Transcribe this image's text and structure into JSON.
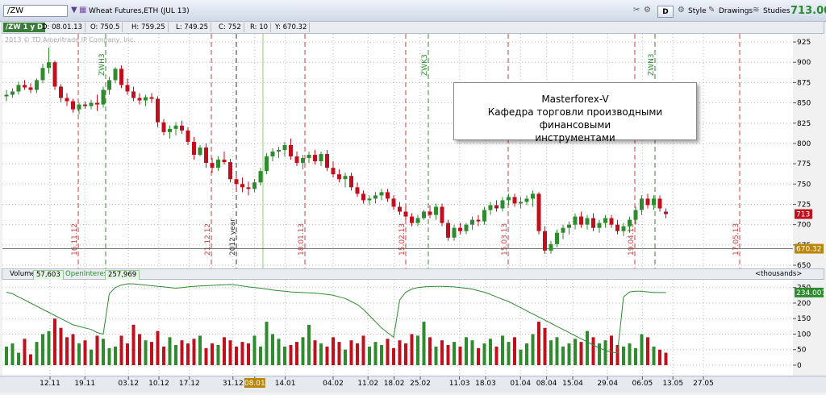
{
  "toolbar": {
    "symbol": "/ZW",
    "instrument": "Wheat Futures,ETH (JUL 13)",
    "d_label": "D",
    "style_label": "Style",
    "drawings_label": "Drawings",
    "studies_label": "Studies",
    "last_price": "713.00"
  },
  "statusbar": {
    "sym": "/ZW 1 y D",
    "date": "D: 08.01.13",
    "open": "O: 750.5",
    "high": "H: 759.25",
    "low": "L: 749.25",
    "close": "C: 752",
    "range": "R: 10",
    "y": "Y: 670.32"
  },
  "copyright": "2013 © TD Ameritrade IP Company, Inc.",
  "annotation": {
    "line1": "Masterforex-V",
    "line2": "Кафедра торговли производными финансовыми",
    "line3": "инструментами"
  },
  "volume_header": {
    "vol_label": "Volume",
    "vol_value": "57,603",
    "oi_label": "OpenInterest",
    "oi_value": "257,969",
    "units": "<thousands>"
  },
  "markers": {
    "current_price": "713",
    "y_price": "670.32",
    "oi_current": "234.007",
    "cursor_date": "08.01"
  },
  "colors": {
    "bull": "#2e8b2e",
    "bear": "#c0101e",
    "grid": "#b8b8b8",
    "oi": "#2e8b2e"
  },
  "chart_data": [
    {
      "type": "candlestick",
      "title": "Wheat Futures,ETH (JUL 13)",
      "ylim": [
        650,
        935
      ],
      "y_ticks": [
        650,
        675,
        700,
        725,
        750,
        775,
        800,
        825,
        850,
        875,
        900,
        925
      ],
      "x_ticks": [
        "12.11",
        "19.11",
        "03.12",
        "10.12",
        "17.12",
        "31.12",
        "08.01",
        "14.01",
        "04.02",
        "11.02",
        "18.02",
        "25.02",
        "11.03",
        "18.03",
        "01.04",
        "08.04",
        "15.04",
        "29.04",
        "06.05",
        "13.05",
        "27.05"
      ],
      "vertical_labels": [
        {
          "text": "16.11.12",
          "color": "red"
        },
        {
          "text": "21.12.12",
          "color": "red"
        },
        {
          "text": "2012 year",
          "color": "black"
        },
        {
          "text": "18.01.13",
          "color": "red"
        },
        {
          "text": "15.02.13",
          "color": "red"
        },
        {
          "text": "15.03.13",
          "color": "red"
        },
        {
          "text": "19.04.13",
          "color": "red"
        },
        {
          "text": "17.05.13",
          "color": "red"
        },
        {
          "text": "ZWH3",
          "color": "green"
        },
        {
          "text": "ZWK3",
          "color": "green"
        },
        {
          "text": "ZWN3",
          "color": "green"
        }
      ],
      "ohlc": [
        [
          858,
          866,
          852,
          860
        ],
        [
          860,
          868,
          856,
          864
        ],
        [
          864,
          876,
          860,
          872
        ],
        [
          872,
          878,
          866,
          869
        ],
        [
          869,
          874,
          862,
          866
        ],
        [
          866,
          880,
          862,
          878
        ],
        [
          878,
          898,
          874,
          893
        ],
        [
          893,
          918,
          886,
          900
        ],
        [
          900,
          902,
          866,
          870
        ],
        [
          870,
          873,
          851,
          856
        ],
        [
          856,
          862,
          846,
          852
        ],
        [
          852,
          855,
          838,
          842
        ],
        [
          842,
          850,
          836,
          848
        ],
        [
          848,
          852,
          843,
          846
        ],
        [
          846,
          854,
          842,
          850
        ],
        [
          850,
          860,
          840,
          848
        ],
        [
          848,
          870,
          844,
          866
        ],
        [
          866,
          882,
          860,
          878
        ],
        [
          878,
          894,
          874,
          892
        ],
        [
          892,
          896,
          868,
          872
        ],
        [
          872,
          880,
          860,
          864
        ],
        [
          864,
          870,
          852,
          856
        ],
        [
          856,
          862,
          848,
          853
        ],
        [
          853,
          860,
          846,
          857
        ],
        [
          857,
          862,
          850,
          855
        ],
        [
          855,
          858,
          820,
          826
        ],
        [
          826,
          830,
          810,
          814
        ],
        [
          814,
          822,
          806,
          818
        ],
        [
          818,
          826,
          810,
          822
        ],
        [
          822,
          828,
          812,
          816
        ],
        [
          816,
          820,
          798,
          802
        ],
        [
          802,
          808,
          780,
          786
        ],
        [
          786,
          798,
          784,
          795
        ],
        [
          795,
          800,
          770,
          776
        ],
        [
          776,
          782,
          764,
          770
        ],
        [
          770,
          784,
          766,
          780
        ],
        [
          780,
          790,
          774,
          777
        ],
        [
          777,
          781,
          752,
          756
        ],
        [
          756,
          760,
          742,
          750
        ],
        [
          750,
          758,
          740,
          746
        ],
        [
          746,
          753,
          736,
          744
        ],
        [
          744,
          756,
          740,
          752
        ],
        [
          752,
          770,
          748,
          766
        ],
        [
          766,
          788,
          762,
          784
        ],
        [
          784,
          794,
          778,
          790
        ],
        [
          790,
          796,
          782,
          792
        ],
        [
          792,
          802,
          784,
          798
        ],
        [
          798,
          806,
          780,
          784
        ],
        [
          784,
          790,
          772,
          776
        ],
        [
          776,
          786,
          768,
          782
        ],
        [
          782,
          790,
          776,
          786
        ],
        [
          786,
          792,
          774,
          778
        ],
        [
          778,
          790,
          772,
          787
        ],
        [
          787,
          792,
          766,
          770
        ],
        [
          770,
          778,
          758,
          762
        ],
        [
          762,
          768,
          752,
          756
        ],
        [
          756,
          764,
          746,
          760
        ],
        [
          760,
          764,
          742,
          746
        ],
        [
          746,
          752,
          734,
          738
        ],
        [
          738,
          742,
          726,
          730
        ],
        [
          730,
          736,
          724,
          732
        ],
        [
          732,
          740,
          726,
          736
        ],
        [
          736,
          744,
          730,
          740
        ],
        [
          740,
          744,
          728,
          732
        ],
        [
          732,
          736,
          718,
          722
        ],
        [
          722,
          728,
          712,
          716
        ],
        [
          716,
          724,
          706,
          710
        ],
        [
          710,
          714,
          698,
          702
        ],
        [
          702,
          712,
          698,
          708
        ],
        [
          708,
          718,
          706,
          716
        ],
        [
          716,
          724,
          708,
          712
        ],
        [
          712,
          726,
          706,
          722
        ],
        [
          722,
          726,
          698,
          702
        ],
        [
          702,
          706,
          680,
          684
        ],
        [
          684,
          700,
          680,
          696
        ],
        [
          696,
          702,
          688,
          692
        ],
        [
          692,
          702,
          688,
          700
        ],
        [
          700,
          710,
          694,
          706
        ],
        [
          706,
          712,
          698,
          704
        ],
        [
          704,
          722,
          700,
          718
        ],
        [
          718,
          728,
          712,
          724
        ],
        [
          724,
          730,
          716,
          720
        ],
        [
          720,
          734,
          716,
          730
        ],
        [
          730,
          738,
          724,
          734
        ],
        [
          734,
          738,
          722,
          726
        ],
        [
          726,
          734,
          720,
          728
        ],
        [
          728,
          736,
          724,
          732
        ],
        [
          732,
          742,
          722,
          738
        ],
        [
          738,
          740,
          688,
          692
        ],
        [
          692,
          698,
          664,
          668
        ],
        [
          668,
          680,
          664,
          676
        ],
        [
          676,
          694,
          672,
          690
        ],
        [
          690,
          700,
          682,
          696
        ],
        [
          696,
          704,
          688,
          700
        ],
        [
          700,
          714,
          694,
          710
        ],
        [
          710,
          716,
          696,
          700
        ],
        [
          700,
          712,
          694,
          708
        ],
        [
          708,
          714,
          692,
          696
        ],
        [
          696,
          706,
          690,
          702
        ],
        [
          702,
          712,
          696,
          708
        ],
        [
          708,
          712,
          696,
          700
        ],
        [
          700,
          706,
          688,
          692
        ],
        [
          692,
          702,
          686,
          698
        ],
        [
          698,
          710,
          690,
          706
        ],
        [
          706,
          722,
          700,
          718
        ],
        [
          718,
          736,
          712,
          732
        ],
        [
          732,
          738,
          720,
          724
        ],
        [
          724,
          736,
          718,
          732
        ],
        [
          732,
          736,
          716,
          720
        ],
        [
          716,
          720,
          708,
          713
        ]
      ]
    },
    {
      "type": "bar+line",
      "title": "Volume / OpenInterest",
      "ylim": [
        0,
        270
      ],
      "y_ticks": [
        0,
        50,
        100,
        150,
        200,
        250
      ],
      "volume": [
        60,
        70,
        40,
        85,
        35,
        75,
        100,
        110,
        150,
        120,
        90,
        100,
        70,
        80,
        50,
        95,
        85,
        55,
        60,
        95,
        70,
        130,
        100,
        80,
        75,
        110,
        60,
        90,
        65,
        80,
        70,
        85,
        95,
        55,
        70,
        65,
        90,
        80,
        60,
        75,
        70,
        95,
        60,
        140,
        100,
        85,
        60,
        65,
        75,
        90,
        130,
        80,
        70,
        60,
        90,
        75,
        50,
        80,
        70,
        95,
        60,
        75,
        65,
        85,
        55,
        80,
        70,
        100,
        95,
        140,
        90,
        60,
        80,
        65,
        75,
        60,
        90,
        80,
        55,
        70,
        85,
        60,
        95,
        75,
        90,
        50,
        70,
        100,
        140,
        120,
        80,
        90,
        60,
        70,
        85,
        75,
        110,
        90,
        70,
        80,
        95,
        65,
        60,
        70,
        55,
        100,
        90,
        60,
        50,
        40
      ],
      "open_interest": [
        235,
        230,
        220,
        210,
        200,
        190,
        180,
        170,
        160,
        150,
        140,
        130,
        125,
        120,
        115,
        105,
        100,
        230,
        250,
        258,
        262,
        262,
        260,
        258,
        256,
        254,
        252,
        250,
        248,
        250,
        252,
        254,
        255,
        256,
        257,
        258,
        259,
        260,
        258,
        255,
        252,
        250,
        248,
        245,
        242,
        240,
        238,
        236,
        235,
        234,
        233,
        232,
        230,
        228,
        225,
        220,
        215,
        205,
        195,
        180,
        160,
        140,
        120,
        105,
        90,
        210,
        235,
        245,
        250,
        252,
        253,
        254,
        254,
        253,
        252,
        250,
        248,
        245,
        240,
        235,
        228,
        220,
        212,
        205,
        195,
        185,
        175,
        165,
        155,
        145,
        135,
        125,
        115,
        105,
        95,
        85,
        75,
        65,
        55,
        48,
        42,
        40,
        220,
        236,
        238,
        238,
        236,
        234,
        234,
        234
      ]
    }
  ]
}
